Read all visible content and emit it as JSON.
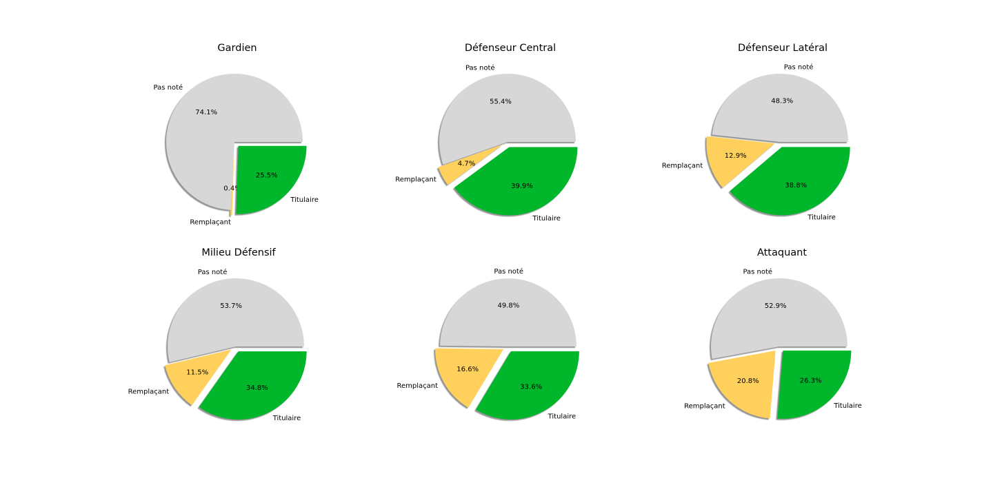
{
  "chart_data": [
    {
      "type": "pie",
      "title": "Gardien",
      "labels": [
        "Pas noté",
        "Remplaçant",
        "Titulaire"
      ],
      "values": [
        74.1,
        0.4,
        25.5
      ],
      "value_labels": [
        "74.1%",
        "0.4%",
        "25.5%"
      ],
      "colors": [
        "#d8d7d8",
        "#ffd15c",
        "#00b62b"
      ],
      "exploded": [
        false,
        true,
        true
      ],
      "shadow": true,
      "start": "3 o'clock",
      "direction": "counterclockwise"
    },
    {
      "type": "pie",
      "title": "Défenseur Central",
      "labels": [
        "Pas noté",
        "Remplaçant",
        "Titulaire"
      ],
      "values": [
        55.4,
        4.7,
        39.9
      ],
      "value_labels": [
        "55.4%",
        "4.7%",
        "39.9%"
      ],
      "colors": [
        "#d8d7d8",
        "#ffd15c",
        "#00b62b"
      ],
      "exploded": [
        false,
        true,
        true
      ],
      "shadow": true,
      "start": "3 o'clock",
      "direction": "counterclockwise"
    },
    {
      "type": "pie",
      "title": "Défenseur Latéral",
      "labels": [
        "Pas noté",
        "Remplaçant",
        "Titulaire"
      ],
      "values": [
        48.3,
        12.9,
        38.8
      ],
      "value_labels": [
        "48.3%",
        "12.9%",
        "38.8%"
      ],
      "colors": [
        "#d8d7d8",
        "#ffd15c",
        "#00b62b"
      ],
      "exploded": [
        false,
        true,
        true
      ],
      "shadow": true,
      "start": "3 o'clock",
      "direction": "counterclockwise"
    },
    {
      "type": "pie",
      "title": "Milieu Défensif",
      "labels": [
        "Pas noté",
        "Remplaçant",
        "Titulaire"
      ],
      "values": [
        53.7,
        11.5,
        34.8
      ],
      "value_labels": [
        "53.7%",
        "11.5%",
        "34.8%"
      ],
      "colors": [
        "#d8d7d8",
        "#ffd15c",
        "#00b62b"
      ],
      "exploded": [
        false,
        true,
        true
      ],
      "shadow": true,
      "start": "3 o'clock",
      "direction": "counterclockwise"
    },
    {
      "type": "pie",
      "title": "",
      "labels": [
        "Pas noté",
        "Remplaçant",
        "Titulaire"
      ],
      "values": [
        49.8,
        16.6,
        33.6
      ],
      "value_labels": [
        "49.8%",
        "16.6%",
        "33.6%"
      ],
      "colors": [
        "#d8d7d8",
        "#ffd15c",
        "#00b62b"
      ],
      "exploded": [
        false,
        true,
        true
      ],
      "shadow": true,
      "start": "3 o'clock",
      "direction": "counterclockwise"
    },
    {
      "type": "pie",
      "title": "Attaquant",
      "labels": [
        "Pas noté",
        "Remplaçant",
        "Titulaire"
      ],
      "values": [
        52.9,
        20.8,
        26.3
      ],
      "value_labels": [
        "52.9%",
        "20.8%",
        "26.3%"
      ],
      "colors": [
        "#d8d7d8",
        "#ffd15c",
        "#00b62b"
      ],
      "exploded": [
        false,
        true,
        true
      ],
      "shadow": true,
      "start": "3 o'clock",
      "direction": "counterclockwise"
    }
  ]
}
